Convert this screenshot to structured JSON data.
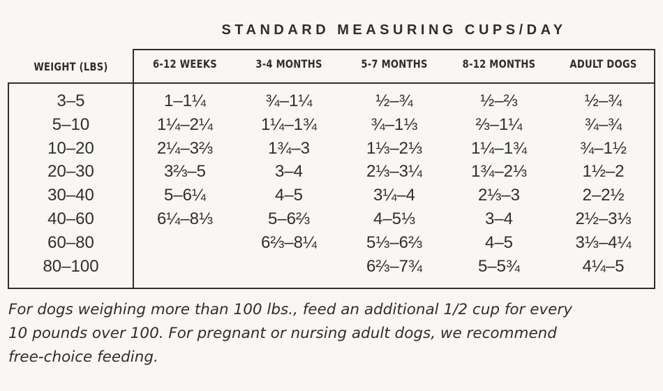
{
  "title": "STANDARD MEASURING CUPS/DAY",
  "headers": {
    "weight": "WEIGHT (LBS)",
    "ages": [
      "6-12 WEEKS",
      "3-4 MONTHS",
      "5-7 MONTHS",
      "8-12 MONTHS",
      "ADULT DOGS"
    ]
  },
  "rows": [
    {
      "weight": "3–5",
      "cells": [
        "1–1¼",
        "¾–1¼",
        "½–¾",
        "½–⅔",
        "½–¾"
      ]
    },
    {
      "weight": "5–10",
      "cells": [
        "1¼–2¼",
        "1¼–1¾",
        "¾–1⅓",
        "⅔–1¼",
        "¾–¾"
      ]
    },
    {
      "weight": "10–20",
      "cells": [
        "2¼–3⅔",
        "1¾–3",
        "1⅓–2⅓",
        "1¼–1¾",
        "¾–1½"
      ]
    },
    {
      "weight": "20–30",
      "cells": [
        "3⅔–5",
        "3–4",
        "2⅓–3¼",
        "1¾–2⅓",
        "1½–2"
      ]
    },
    {
      "weight": "30–40",
      "cells": [
        "5–6¼",
        "4–5",
        "3¼–4",
        "2⅓–3",
        "2–2½"
      ]
    },
    {
      "weight": "40–60",
      "cells": [
        "6¼–8⅓",
        "5–6⅔",
        "4–5⅓",
        "3–4",
        "2½–3⅓"
      ]
    },
    {
      "weight": "60–80",
      "cells": [
        "",
        "6⅔–8¼",
        "5⅓–6⅔",
        "4–5",
        "3⅓–4¼"
      ]
    },
    {
      "weight": "80–100",
      "cells": [
        "",
        "",
        "6⅔–7¾",
        "5–5¾",
        "4¼–5"
      ]
    }
  ],
  "note": {
    "line1": "For dogs weighing more than 100 lbs., feed an additional 1/2 cup for every",
    "line2": "10 pounds over 100. For pregnant or nursing adult dogs, we recommend",
    "line3": "free-choice feeding."
  }
}
